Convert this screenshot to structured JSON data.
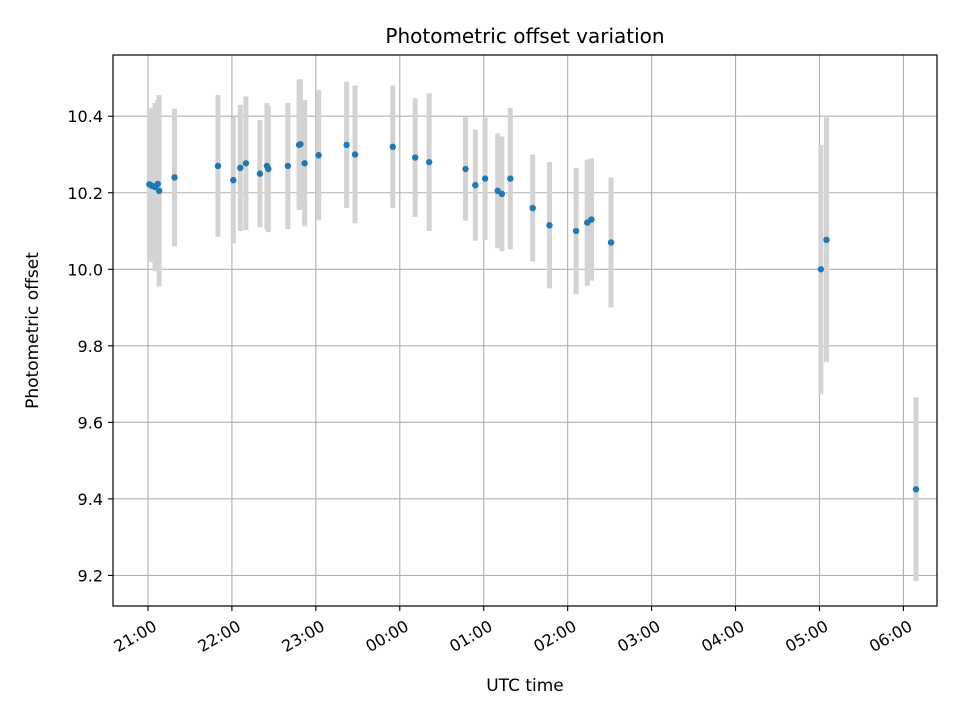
{
  "chart_data": {
    "type": "scatter",
    "title": "Photometric offset variation",
    "xlabel": "UTC time",
    "ylabel": "Photometric offset",
    "grid": true,
    "xlim": [
      "20:35",
      "06:24"
    ],
    "ylim": [
      9.12,
      10.56
    ],
    "x_ticks": [
      "21:00",
      "22:00",
      "23:00",
      "00:00",
      "01:00",
      "02:00",
      "03:00",
      "04:00",
      "05:00",
      "06:00"
    ],
    "y_ticks": [
      9.2,
      9.4,
      9.6,
      9.8,
      10.0,
      10.2,
      10.4
    ],
    "y_tick_labels": [
      "9.2",
      "9.4",
      "9.6",
      "9.8",
      "10.0",
      "10.2",
      "10.4"
    ],
    "point_color": "#1f77b4",
    "errorbar_color": "#d3d3d3",
    "points": [
      {
        "x": "21:01",
        "y": 10.222,
        "err": 0.2
      },
      {
        "x": "21:03",
        "y": 10.218,
        "err": 0.2
      },
      {
        "x": "21:05",
        "y": 10.215,
        "err": 0.22
      },
      {
        "x": "21:07",
        "y": 10.223,
        "err": 0.22
      },
      {
        "x": "21:08",
        "y": 10.205,
        "err": 0.25
      },
      {
        "x": "21:19",
        "y": 10.24,
        "err": 0.18
      },
      {
        "x": "21:50",
        "y": 10.27,
        "err": 0.185
      },
      {
        "x": "22:01",
        "y": 10.233,
        "err": 0.165
      },
      {
        "x": "22:06",
        "y": 10.265,
        "err": 0.165
      },
      {
        "x": "22:10",
        "y": 10.277,
        "err": 0.175
      },
      {
        "x": "22:20",
        "y": 10.25,
        "err": 0.14
      },
      {
        "x": "22:25",
        "y": 10.27,
        "err": 0.165
      },
      {
        "x": "22:26",
        "y": 10.262,
        "err": 0.165
      },
      {
        "x": "22:40",
        "y": 10.27,
        "err": 0.165
      },
      {
        "x": "22:48",
        "y": 10.325,
        "err": 0.17
      },
      {
        "x": "22:49",
        "y": 10.327,
        "err": 0.17
      },
      {
        "x": "22:52",
        "y": 10.277,
        "err": 0.165
      },
      {
        "x": "23:02",
        "y": 10.298,
        "err": 0.17
      },
      {
        "x": "23:22",
        "y": 10.325,
        "err": 0.165
      },
      {
        "x": "23:28",
        "y": 10.3,
        "err": 0.18
      },
      {
        "x": "23:55",
        "y": 10.32,
        "err": 0.16
      },
      {
        "x": "00:11",
        "y": 10.292,
        "err": 0.155
      },
      {
        "x": "00:21",
        "y": 10.28,
        "err": 0.18
      },
      {
        "x": "00:47",
        "y": 10.262,
        "err": 0.135
      },
      {
        "x": "00:54",
        "y": 10.22,
        "err": 0.145
      },
      {
        "x": "01:01",
        "y": 10.237,
        "err": 0.16
      },
      {
        "x": "01:10",
        "y": 10.205,
        "err": 0.15
      },
      {
        "x": "01:13",
        "y": 10.197,
        "err": 0.15
      },
      {
        "x": "01:19",
        "y": 10.237,
        "err": 0.185
      },
      {
        "x": "01:35",
        "y": 10.16,
        "err": 0.14
      },
      {
        "x": "01:47",
        "y": 10.115,
        "err": 0.165
      },
      {
        "x": "02:06",
        "y": 10.1,
        "err": 0.165
      },
      {
        "x": "02:14",
        "y": 10.122,
        "err": 0.165
      },
      {
        "x": "02:17",
        "y": 10.13,
        "err": 0.16
      },
      {
        "x": "02:31",
        "y": 10.07,
        "err": 0.17
      },
      {
        "x": "05:01",
        "y": 10.0,
        "err": 0.325
      },
      {
        "x": "05:05",
        "y": 10.077,
        "err": 0.32
      },
      {
        "x": "06:09",
        "y": 9.425,
        "err": 0.24
      }
    ]
  }
}
